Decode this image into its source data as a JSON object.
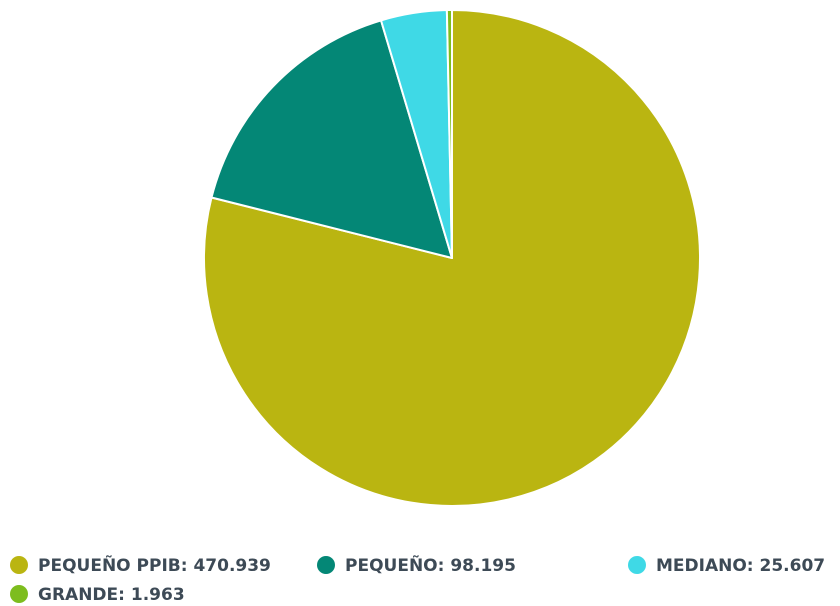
{
  "chart_data": {
    "type": "pie",
    "title": "",
    "slices": [
      {
        "name": "PEQUEÑO PPIB",
        "value": 470939,
        "label": "PEQUEÑO PPIB: 470.939",
        "color": "#bab511"
      },
      {
        "name": "PEQUEÑO",
        "value": 98195,
        "label": "PEQUEÑO: 98.195",
        "color": "#048776"
      },
      {
        "name": "MEDIANO",
        "value": 25607,
        "label": "MEDIANO: 25.607",
        "color": "#3fd9e6"
      },
      {
        "name": "GRANDE",
        "value": 1963,
        "label": "GRANDE: 1.963",
        "color": "#7dbd1e"
      }
    ],
    "legend_position": "bottom"
  }
}
